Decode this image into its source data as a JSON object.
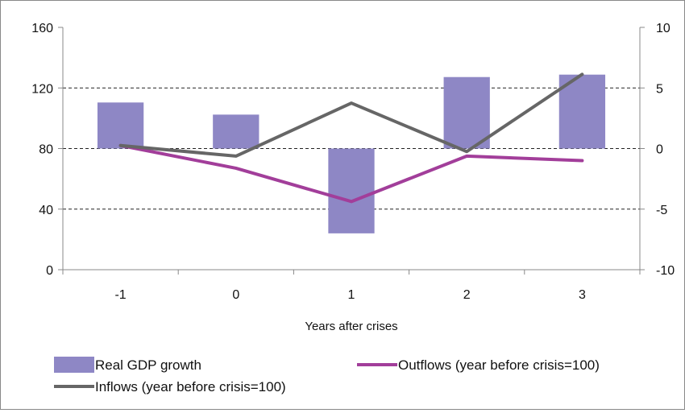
{
  "chart_data": {
    "type": "bar+line",
    "title": "",
    "xlabel": "Years after crises",
    "categories": [
      "-1",
      "0",
      "1",
      "2",
      "3"
    ],
    "y_left": {
      "ylim": [
        0,
        160
      ],
      "ticks": [
        "0",
        "40",
        "80",
        "120",
        "160"
      ]
    },
    "y_right": {
      "ylim": [
        -10,
        10
      ],
      "ticks": [
        "-10",
        "-5",
        "0",
        "5",
        "10"
      ]
    },
    "grid": "horizontal dashed",
    "legend_placement": "bottom",
    "series": [
      {
        "name": "Real GDP growth",
        "type": "bar",
        "axis": "right",
        "color": "#8e87c5",
        "values": [
          3.8,
          2.8,
          -7,
          5.9,
          6.1
        ]
      },
      {
        "name": "Outflows (year before crisis=100)",
        "type": "line",
        "axis": "left",
        "color": "#a23e9a",
        "values": [
          82,
          67,
          45,
          75,
          72
        ]
      },
      {
        "name": "Inflows (year before crisis=100)",
        "type": "line",
        "axis": "left",
        "color": "#666666",
        "values": [
          82,
          75,
          110,
          78,
          129
        ]
      }
    ]
  }
}
